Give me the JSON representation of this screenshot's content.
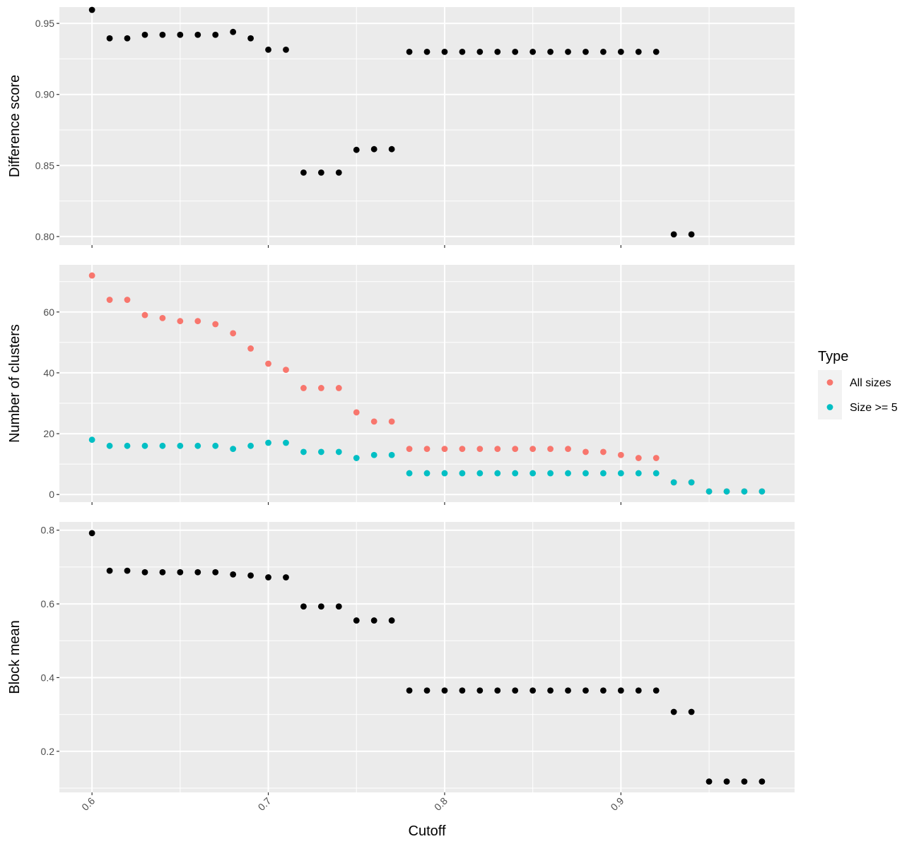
{
  "chart_data": {
    "type": "scatter",
    "xlabel": "Cutoff",
    "x_ticks": [
      "0.6",
      "0.7",
      "0.8",
      "0.9"
    ],
    "xlim": [
      0.5815,
      0.9985
    ],
    "legend": {
      "title": "Type",
      "position": "right",
      "entries": [
        {
          "name": "All sizes",
          "color": "#F8766D"
        },
        {
          "name": "Size >= 5",
          "color": "#00BFC4"
        }
      ]
    },
    "panels": [
      {
        "id": "difference",
        "ylabel": "Difference score",
        "ylim": [
          0.794,
          0.9615
        ],
        "y_ticks": [
          "0.80",
          "0.85",
          "0.90",
          "0.95"
        ],
        "grid": true,
        "series": [
          {
            "color": "#000000",
            "points": [
              [
                0.6,
                0.9595
              ],
              [
                0.61,
                0.9395
              ],
              [
                0.62,
                0.9395
              ],
              [
                0.63,
                0.942
              ],
              [
                0.64,
                0.942
              ],
              [
                0.65,
                0.942
              ],
              [
                0.66,
                0.942
              ],
              [
                0.67,
                0.942
              ],
              [
                0.68,
                0.944
              ],
              [
                0.69,
                0.9395
              ],
              [
                0.7,
                0.9315
              ],
              [
                0.71,
                0.9315
              ],
              [
                0.72,
                0.845
              ],
              [
                0.73,
                0.845
              ],
              [
                0.74,
                0.845
              ],
              [
                0.75,
                0.861
              ],
              [
                0.76,
                0.8615
              ],
              [
                0.77,
                0.8615
              ],
              [
                0.78,
                0.93
              ],
              [
                0.79,
                0.93
              ],
              [
                0.8,
                0.93
              ],
              [
                0.81,
                0.93
              ],
              [
                0.82,
                0.93
              ],
              [
                0.83,
                0.93
              ],
              [
                0.84,
                0.93
              ],
              [
                0.85,
                0.93
              ],
              [
                0.86,
                0.93
              ],
              [
                0.87,
                0.93
              ],
              [
                0.88,
                0.93
              ],
              [
                0.89,
                0.93
              ],
              [
                0.9,
                0.93
              ],
              [
                0.91,
                0.93
              ],
              [
                0.92,
                0.93
              ],
              [
                0.93,
                0.8015
              ],
              [
                0.94,
                0.8015
              ]
            ]
          }
        ]
      },
      {
        "id": "clusters",
        "ylabel": "Number of clusters",
        "ylim": [
          -2.5,
          75.5
        ],
        "y_ticks": [
          "0",
          "20",
          "40",
          "60"
        ],
        "grid": true,
        "series": [
          {
            "name": "All sizes",
            "color": "#F8766D",
            "points": [
              [
                0.6,
                72
              ],
              [
                0.61,
                64
              ],
              [
                0.62,
                64
              ],
              [
                0.63,
                59
              ],
              [
                0.64,
                58
              ],
              [
                0.65,
                57
              ],
              [
                0.66,
                57
              ],
              [
                0.67,
                56
              ],
              [
                0.68,
                53
              ],
              [
                0.69,
                48
              ],
              [
                0.7,
                43
              ],
              [
                0.71,
                41
              ],
              [
                0.72,
                35
              ],
              [
                0.73,
                35
              ],
              [
                0.74,
                35
              ],
              [
                0.75,
                27
              ],
              [
                0.76,
                24
              ],
              [
                0.77,
                24
              ],
              [
                0.78,
                15
              ],
              [
                0.79,
                15
              ],
              [
                0.8,
                15
              ],
              [
                0.81,
                15
              ],
              [
                0.82,
                15
              ],
              [
                0.83,
                15
              ],
              [
                0.84,
                15
              ],
              [
                0.85,
                15
              ],
              [
                0.86,
                15
              ],
              [
                0.87,
                15
              ],
              [
                0.88,
                14
              ],
              [
                0.89,
                14
              ],
              [
                0.9,
                13
              ],
              [
                0.91,
                12
              ],
              [
                0.92,
                12
              ],
              [
                0.93,
                4
              ],
              [
                0.94,
                4
              ],
              [
                0.95,
                1
              ],
              [
                0.96,
                1
              ],
              [
                0.97,
                1
              ],
              [
                0.98,
                1
              ]
            ]
          },
          {
            "name": "Size >= 5",
            "color": "#00BFC4",
            "points": [
              [
                0.6,
                18
              ],
              [
                0.61,
                16
              ],
              [
                0.62,
                16
              ],
              [
                0.63,
                16
              ],
              [
                0.64,
                16
              ],
              [
                0.65,
                16
              ],
              [
                0.66,
                16
              ],
              [
                0.67,
                16
              ],
              [
                0.68,
                15
              ],
              [
                0.69,
                16
              ],
              [
                0.7,
                17
              ],
              [
                0.71,
                17
              ],
              [
                0.72,
                14
              ],
              [
                0.73,
                14
              ],
              [
                0.74,
                14
              ],
              [
                0.75,
                12
              ],
              [
                0.76,
                13
              ],
              [
                0.77,
                13
              ],
              [
                0.78,
                7
              ],
              [
                0.79,
                7
              ],
              [
                0.8,
                7
              ],
              [
                0.81,
                7
              ],
              [
                0.82,
                7
              ],
              [
                0.83,
                7
              ],
              [
                0.84,
                7
              ],
              [
                0.85,
                7
              ],
              [
                0.86,
                7
              ],
              [
                0.87,
                7
              ],
              [
                0.88,
                7
              ],
              [
                0.89,
                7
              ],
              [
                0.9,
                7
              ],
              [
                0.91,
                7
              ],
              [
                0.92,
                7
              ],
              [
                0.93,
                4
              ],
              [
                0.94,
                4
              ],
              [
                0.95,
                1
              ],
              [
                0.96,
                1
              ],
              [
                0.97,
                1
              ],
              [
                0.98,
                1
              ]
            ]
          }
        ]
      },
      {
        "id": "block",
        "ylabel": "Block mean",
        "ylim": [
          0.0885,
          0.8225
        ],
        "y_ticks": [
          "0.2",
          "0.4",
          "0.6",
          "0.8"
        ],
        "grid": true,
        "series": [
          {
            "color": "#000000",
            "points": [
              [
                0.6,
                0.792
              ],
              [
                0.61,
                0.69
              ],
              [
                0.62,
                0.69
              ],
              [
                0.63,
                0.686
              ],
              [
                0.64,
                0.686
              ],
              [
                0.65,
                0.686
              ],
              [
                0.66,
                0.686
              ],
              [
                0.67,
                0.686
              ],
              [
                0.68,
                0.68
              ],
              [
                0.69,
                0.677
              ],
              [
                0.7,
                0.672
              ],
              [
                0.71,
                0.672
              ],
              [
                0.72,
                0.593
              ],
              [
                0.73,
                0.593
              ],
              [
                0.74,
                0.593
              ],
              [
                0.75,
                0.555
              ],
              [
                0.76,
                0.555
              ],
              [
                0.77,
                0.555
              ],
              [
                0.78,
                0.365
              ],
              [
                0.79,
                0.365
              ],
              [
                0.8,
                0.365
              ],
              [
                0.81,
                0.365
              ],
              [
                0.82,
                0.365
              ],
              [
                0.83,
                0.365
              ],
              [
                0.84,
                0.365
              ],
              [
                0.85,
                0.365
              ],
              [
                0.86,
                0.365
              ],
              [
                0.87,
                0.365
              ],
              [
                0.88,
                0.365
              ],
              [
                0.89,
                0.365
              ],
              [
                0.9,
                0.365
              ],
              [
                0.91,
                0.365
              ],
              [
                0.92,
                0.365
              ],
              [
                0.93,
                0.307
              ],
              [
                0.94,
                0.307
              ],
              [
                0.95,
                0.118
              ],
              [
                0.96,
                0.118
              ],
              [
                0.97,
                0.118
              ],
              [
                0.98,
                0.118
              ]
            ]
          }
        ]
      }
    ]
  }
}
